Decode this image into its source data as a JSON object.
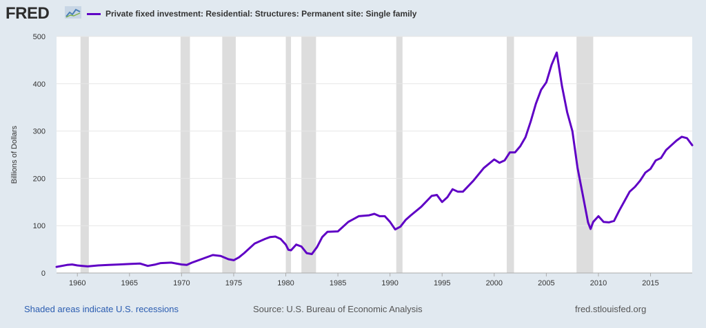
{
  "header": {
    "logo_text": "FRED",
    "logo_icon": "fred-chart-icon"
  },
  "chart_data": {
    "type": "line",
    "series": [
      {
        "name": "Private fixed investment: Residential: Structures: Permanent site: Single family",
        "color": "#5f00c5",
        "x": [
          1958.0,
          1959.0,
          1959.5,
          1960.0,
          1960.5,
          1961.0,
          1962.0,
          1963.0,
          1964.0,
          1965.0,
          1966.0,
          1966.75,
          1967.5,
          1968.0,
          1969.0,
          1970.0,
          1970.5,
          1971.0,
          1972.0,
          1973.0,
          1973.75,
          1974.5,
          1975.0,
          1975.5,
          1976.0,
          1977.0,
          1978.0,
          1978.5,
          1979.0,
          1979.5,
          1980.0,
          1980.25,
          1980.5,
          1981.0,
          1981.5,
          1982.0,
          1982.5,
          1983.0,
          1983.5,
          1984.0,
          1985.0,
          1986.0,
          1987.0,
          1988.0,
          1988.5,
          1989.0,
          1989.5,
          1990.0,
          1990.5,
          1991.0,
          1991.5,
          1992.0,
          1993.0,
          1994.0,
          1994.5,
          1995.0,
          1995.5,
          1996.0,
          1996.5,
          1997.0,
          1998.0,
          1999.0,
          2000.0,
          2000.5,
          2001.0,
          2001.5,
          2002.0,
          2002.5,
          2003.0,
          2003.5,
          2004.0,
          2004.5,
          2005.0,
          2005.5,
          2006.0,
          2006.5,
          2007.0,
          2007.5,
          2008.0,
          2008.5,
          2009.0,
          2009.25,
          2009.5,
          2010.0,
          2010.5,
          2011.0,
          2011.5,
          2012.0,
          2012.5,
          2013.0,
          2013.5,
          2014.0,
          2014.5,
          2015.0,
          2015.5,
          2016.0,
          2016.5,
          2017.0,
          2017.5,
          2018.0,
          2018.5,
          2019.0
        ],
        "y": [
          13,
          17,
          18,
          16,
          15,
          14,
          16,
          17,
          18,
          19,
          20,
          15,
          18,
          21,
          22,
          18,
          17,
          22,
          30,
          38,
          36,
          29,
          27,
          33,
          42,
          62,
          72,
          76,
          77,
          72,
          60,
          49,
          48,
          60,
          56,
          42,
          40,
          55,
          76,
          87,
          88,
          108,
          120,
          122,
          125,
          120,
          120,
          108,
          92,
          98,
          112,
          122,
          140,
          163,
          165,
          150,
          160,
          177,
          172,
          172,
          195,
          222,
          240,
          233,
          238,
          255,
          255,
          268,
          287,
          320,
          358,
          387,
          403,
          440,
          466,
          395,
          340,
          300,
          222,
          165,
          107,
          93,
          108,
          120,
          108,
          107,
          110,
          132,
          152,
          172,
          182,
          195,
          212,
          220,
          238,
          243,
          260,
          270,
          280,
          288,
          285,
          270
        ],
        "dash": false
      }
    ],
    "xlim": [
      1958.0,
      2019.0
    ],
    "ylim": [
      0,
      500
    ],
    "xticks": [
      1960,
      1965,
      1970,
      1975,
      1980,
      1985,
      1990,
      1995,
      2000,
      2005,
      2010,
      2015
    ],
    "yticks": [
      0,
      100,
      200,
      300,
      400,
      500
    ],
    "ylabel": "Billions of Dollars",
    "xlabel": "",
    "title": "",
    "grid": "horizontal",
    "recessions": [
      [
        1960.3,
        1961.1
      ],
      [
        1969.9,
        1970.8
      ],
      [
        1973.9,
        1975.2
      ],
      [
        1980.0,
        1980.5
      ],
      [
        1981.5,
        1982.9
      ],
      [
        1990.6,
        1991.2
      ],
      [
        2001.2,
        2001.9
      ],
      [
        2007.9,
        2009.5
      ]
    ],
    "recession_color": "#dddddd",
    "background": "#ffffff"
  },
  "footer": {
    "recession_note": "Shaded areas indicate U.S. recessions",
    "source": "Source: U.S. Bureau of Economic Analysis",
    "site": "fred.stlouisfed.org"
  }
}
